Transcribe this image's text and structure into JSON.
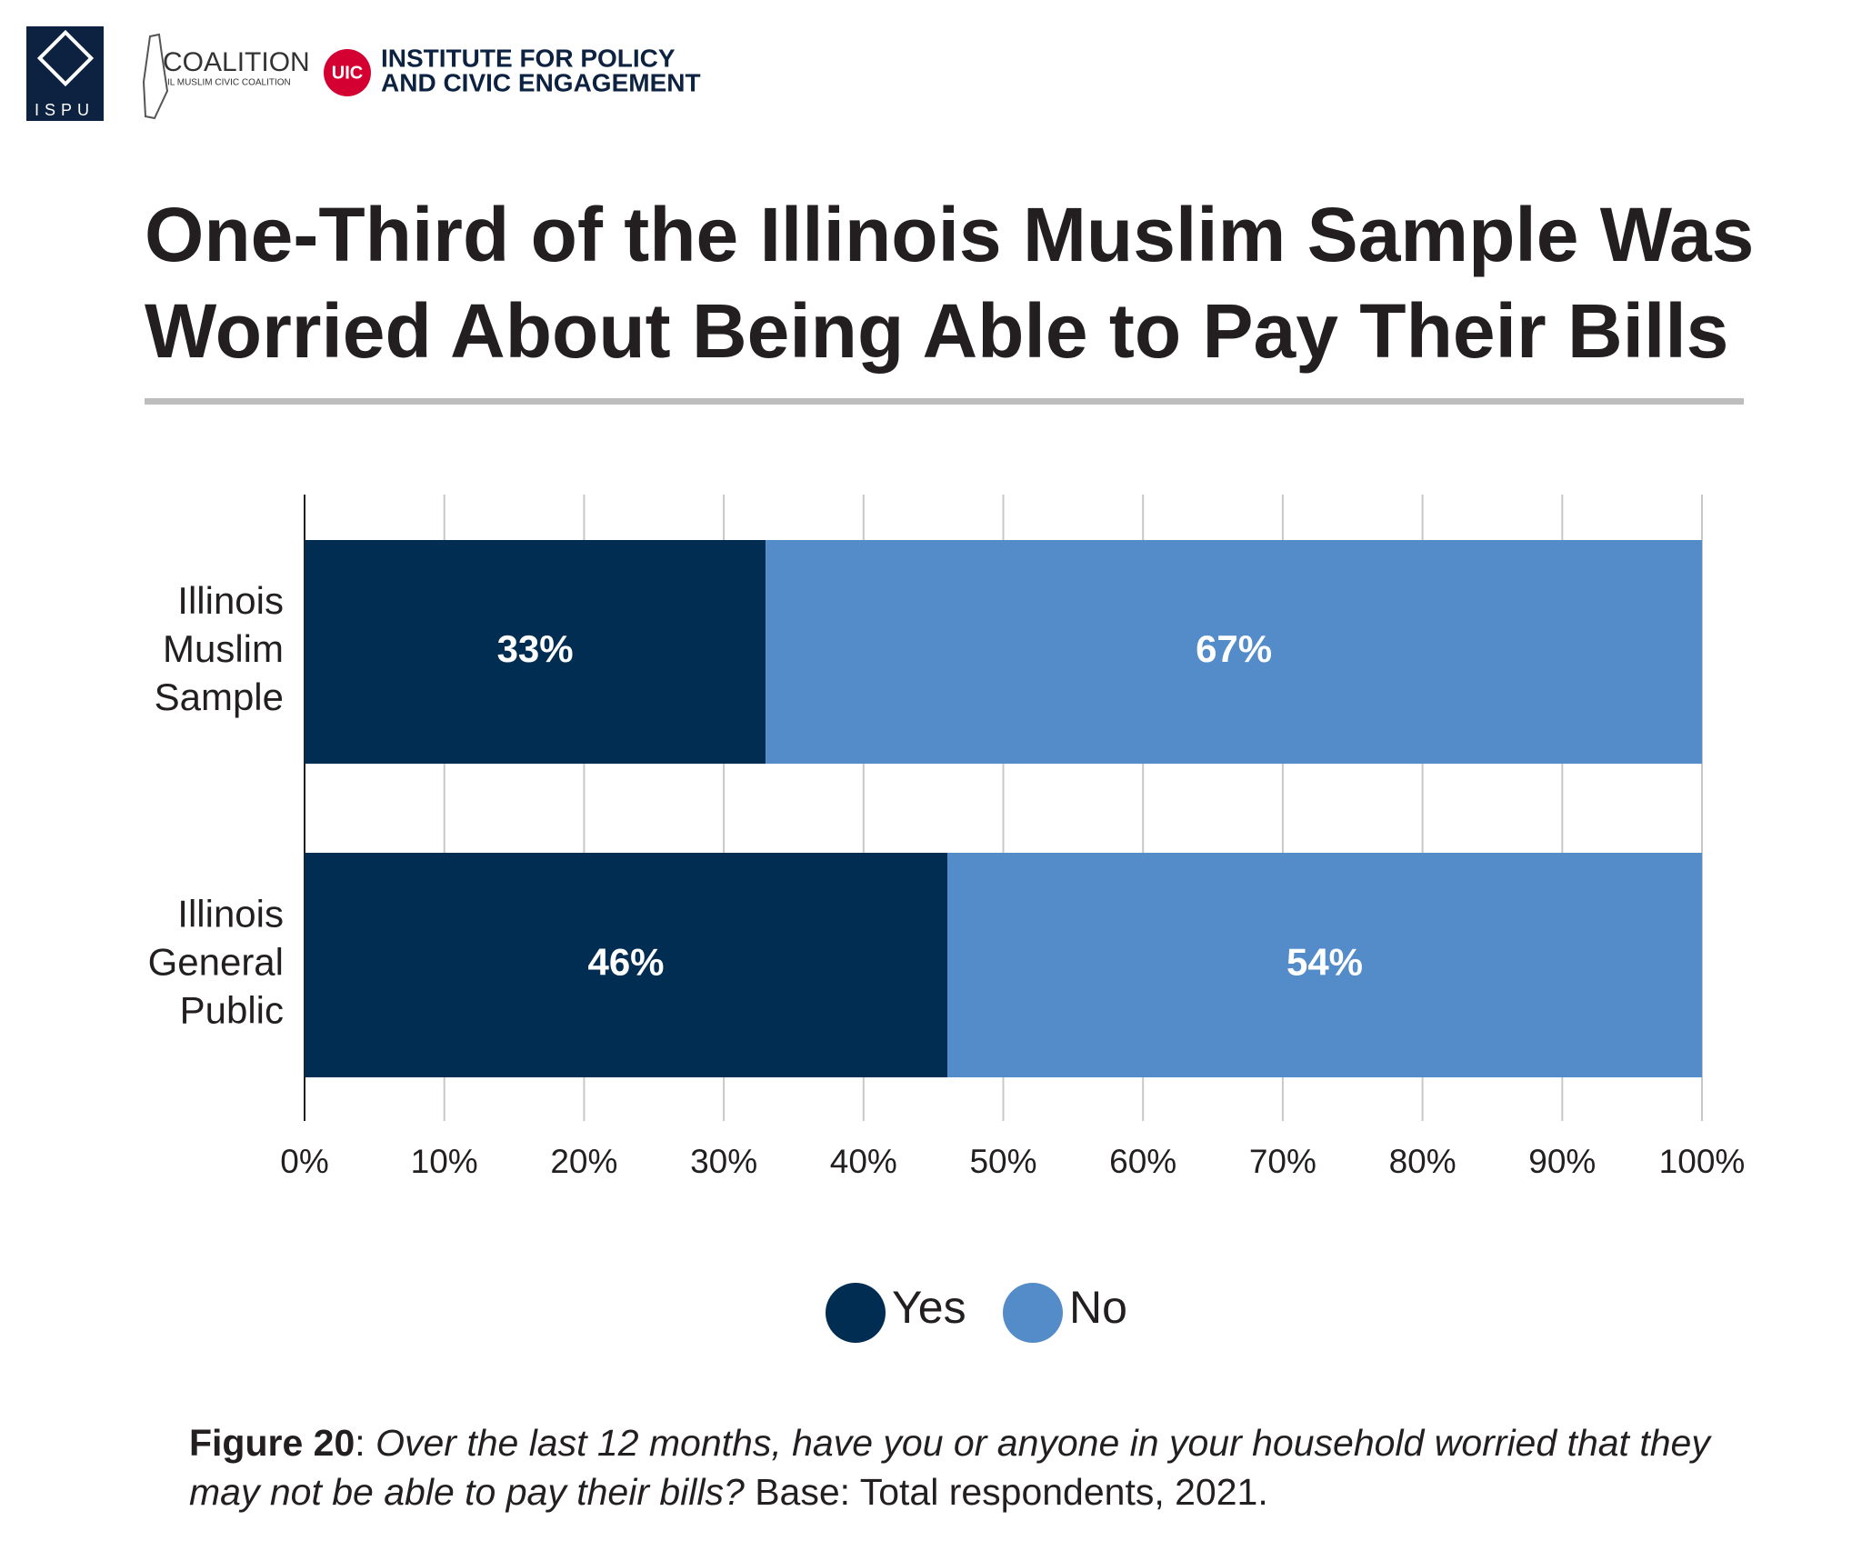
{
  "header": {
    "org1": "ISPU",
    "org2": "COALITION",
    "org2_sub": "IL MUSLIM CIVIC COALITION",
    "org3_badge": "UIC",
    "org3_line1": "INSTITUTE FOR POLICY",
    "org3_line2": "AND CIVIC ENGAGEMENT"
  },
  "chart_data": {
    "type": "stacked-barh",
    "title": "One-Third of the Illinois Muslim Sample Was Worried About Being Able to Pay Their Bills",
    "categories": [
      "Illinois Muslim Sample",
      "Illinois General Public"
    ],
    "series": [
      {
        "name": "Yes",
        "color": "#022d52",
        "values": [
          33,
          46
        ],
        "value_labels": [
          "33%",
          "46%"
        ]
      },
      {
        "name": "No",
        "color": "#538cc8",
        "values": [
          67,
          54
        ],
        "value_labels": [
          "67%",
          "54%"
        ]
      }
    ],
    "xlim": [
      0,
      100
    ],
    "xticks": [
      {
        "value": 0,
        "label": "0%"
      },
      {
        "value": 10,
        "label": "10%"
      },
      {
        "value": 20,
        "label": "20%"
      },
      {
        "value": 30,
        "label": "30%"
      },
      {
        "value": 40,
        "label": "40%"
      },
      {
        "value": 50,
        "label": "50%"
      },
      {
        "value": 60,
        "label": "60%"
      },
      {
        "value": 70,
        "label": "70%"
      },
      {
        "value": 80,
        "label": "80%"
      },
      {
        "value": 90,
        "label": "90%"
      },
      {
        "value": 100,
        "label": "100%"
      }
    ],
    "grid": true,
    "legend": "bottom"
  },
  "footer": {
    "label": "Figure 20",
    "question": "Over the last 12 months, have you or anyone in your household worried that they may not be able to pay their bills?",
    "base": "Base: Total respondents, 2021."
  }
}
